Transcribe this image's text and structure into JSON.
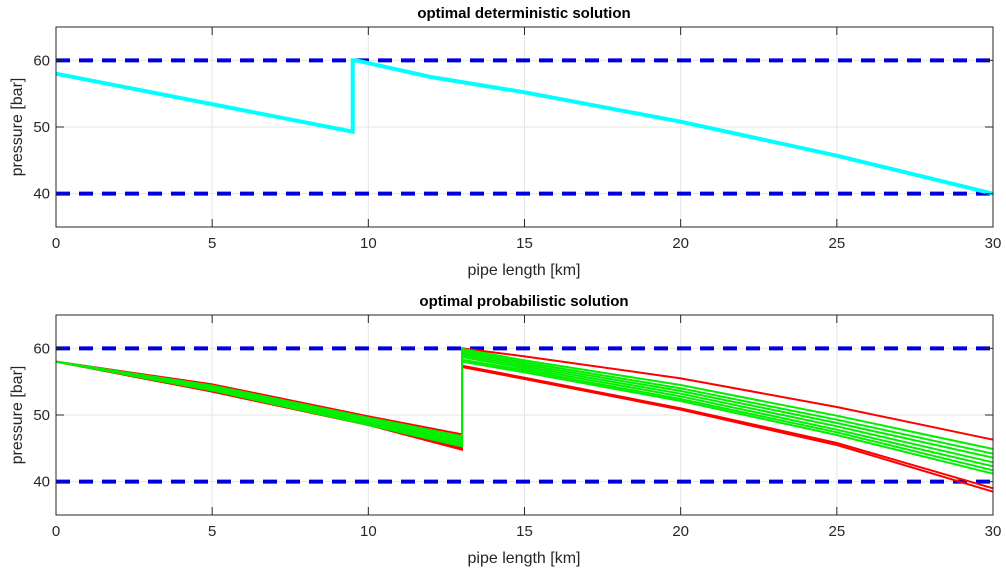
{
  "chart_data": [
    {
      "type": "line",
      "title": "optimal deterministic solution",
      "xlabel": "pipe length [km]",
      "ylabel": "pressure [bar]",
      "xlim": [
        0,
        30
      ],
      "ylim": [
        35,
        65
      ],
      "xticks": [
        0,
        5,
        10,
        15,
        20,
        25,
        30
      ],
      "yticks": [
        40,
        50,
        60
      ],
      "xtick_labels": [
        "0",
        "5",
        "10",
        "15",
        "20",
        "25",
        "30"
      ],
      "ytick_labels": [
        "40",
        "50",
        "60"
      ],
      "grid": true,
      "bounds": [
        {
          "role": "upper-limit",
          "y": 60,
          "color": "#0000dd",
          "style": "dashed"
        },
        {
          "role": "lower-limit",
          "y": 40,
          "color": "#0000dd",
          "style": "dashed"
        }
      ],
      "series": [
        {
          "color": "#00ffff",
          "x": [
            0,
            9.5,
            9.5,
            9.6,
            12,
            15,
            20,
            25,
            30
          ],
          "y": [
            58,
            49.3,
            60,
            60,
            57.5,
            55.2,
            50.8,
            45.7,
            40
          ]
        }
      ]
    },
    {
      "type": "line",
      "title": "optimal probabilistic solution",
      "xlabel": "pipe length [km]",
      "ylabel": "pressure [bar]",
      "xlim": [
        0,
        30
      ],
      "ylim": [
        35,
        65
      ],
      "xticks": [
        0,
        5,
        10,
        15,
        20,
        25,
        30
      ],
      "yticks": [
        40,
        50,
        60
      ],
      "xtick_labels": [
        "0",
        "5",
        "10",
        "15",
        "20",
        "25",
        "30"
      ],
      "ytick_labels": [
        "40",
        "50",
        "60"
      ],
      "grid": true,
      "bounds": [
        {
          "role": "upper-limit",
          "y": 60,
          "color": "#0000dd",
          "style": "dashed"
        },
        {
          "role": "lower-limit",
          "y": 40,
          "color": "#0000dd",
          "style": "dashed"
        }
      ],
      "series": [
        {
          "color": "#ff0000",
          "x": [
            0,
            5,
            10,
            13,
            13,
            15,
            20,
            25,
            30
          ],
          "y": [
            58,
            54.6,
            49.8,
            47.1,
            60,
            58.8,
            55.5,
            51.2,
            46.3
          ]
        },
        {
          "color": "#ff0000",
          "x": [
            0,
            5,
            10,
            13,
            13,
            15,
            20,
            25,
            30
          ],
          "y": [
            58,
            53.5,
            48.5,
            44.8,
            57.2,
            55.4,
            50.8,
            45.5,
            38.5
          ]
        },
        {
          "color": "#ff0000",
          "x": [
            0,
            5,
            10,
            13,
            13,
            15,
            20,
            25,
            30
          ],
          "y": [
            58,
            53.6,
            48.6,
            45.0,
            57.4,
            55.6,
            51.0,
            45.8,
            39.0
          ]
        },
        {
          "color": "#00ee00",
          "x": [
            0,
            5,
            10,
            13,
            13,
            15,
            20,
            25,
            30
          ],
          "y": [
            58,
            54.4,
            49.6,
            46.8,
            59.9,
            58.2,
            54.5,
            49.9,
            44.9
          ]
        },
        {
          "color": "#00ee00",
          "x": [
            0,
            5,
            10,
            13,
            13,
            15,
            20,
            25,
            30
          ],
          "y": [
            58,
            54.2,
            49.3,
            46.5,
            59.6,
            57.9,
            54.0,
            49.3,
            44.2
          ]
        },
        {
          "color": "#00ee00",
          "x": [
            0,
            5,
            10,
            13,
            13,
            15,
            20,
            25,
            30
          ],
          "y": [
            58,
            54.0,
            49.0,
            46.2,
            59.3,
            57.6,
            53.6,
            48.8,
            43.6
          ]
        },
        {
          "color": "#00ee00",
          "x": [
            0,
            5,
            10,
            13,
            13,
            15,
            20,
            25,
            30
          ],
          "y": [
            58,
            53.9,
            48.8,
            45.9,
            59.0,
            57.3,
            53.2,
            48.3,
            42.9
          ]
        },
        {
          "color": "#00ee00",
          "x": [
            0,
            5,
            10,
            13,
            13,
            15,
            20,
            25,
            30
          ],
          "y": [
            58,
            53.8,
            48.7,
            45.7,
            58.7,
            57.0,
            52.8,
            47.8,
            42.3
          ]
        },
        {
          "color": "#00ee00",
          "x": [
            0,
            5,
            10,
            13,
            13,
            15,
            20,
            25,
            30
          ],
          "y": [
            58,
            53.7,
            48.6,
            45.5,
            58.3,
            56.7,
            52.4,
            47.4,
            41.7
          ]
        },
        {
          "color": "#00ee00",
          "x": [
            0,
            5,
            10,
            13,
            13,
            15,
            20,
            25,
            30
          ],
          "y": [
            58,
            53.7,
            48.5,
            45.3,
            58.0,
            56.4,
            52.1,
            47.0,
            41.2
          ]
        }
      ]
    }
  ]
}
